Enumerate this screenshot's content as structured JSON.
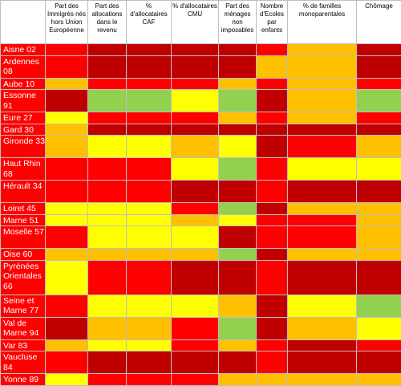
{
  "colors": {
    "dr": "#c00000",
    "r": "#ff0000",
    "o": "#ffc000",
    "y": "#ffff00",
    "g": "#92d050"
  },
  "headers": [
    "",
    "Part des Immigrés nés hors Union Européenne",
    "Part des allocations dans le revenu",
    "% d'allocataires CAF",
    "% d'allocataires CMU",
    "Part des ménages non imposables",
    "Nombre d'Ecoles par enfants",
    "% de familles monoparentales",
    "Chômage"
  ],
  "rows": [
    {
      "name": "Aisne 02",
      "cells": [
        "r",
        "dr",
        "dr",
        "dr",
        "dr",
        "r",
        "o",
        "dr"
      ]
    },
    {
      "name": "Ardennes 08",
      "cells": [
        "r",
        "dr",
        "dr",
        "dr",
        "dr",
        "o",
        "o",
        "dr"
      ]
    },
    {
      "name": "Aube 10",
      "cells": [
        "o",
        "r",
        "r",
        "r",
        "o",
        "r",
        "o",
        "r"
      ]
    },
    {
      "name": "Essonne 91",
      "cells": [
        "dr",
        "g",
        "g",
        "y",
        "g",
        "dr",
        "o",
        "g"
      ]
    },
    {
      "name": "Eure 27",
      "cells": [
        "y",
        "r",
        "r",
        "r",
        "o",
        "r",
        "o",
        "r"
      ]
    },
    {
      "name": "Gard 30",
      "cells": [
        "o",
        "dr",
        "dr",
        "dr",
        "dr",
        "dr",
        "dr",
        "dr"
      ]
    },
    {
      "name": "Gironde 33",
      "cells": [
        "o",
        "y",
        "y",
        "o",
        "y",
        "dr",
        "r",
        "o"
      ]
    },
    {
      "name": "Haut Rhin 68",
      "cells": [
        "r",
        "r",
        "r",
        "y",
        "g",
        "r",
        "y",
        "y"
      ]
    },
    {
      "name": "Hérault 34",
      "cells": [
        "r",
        "r",
        "r",
        "dr",
        "dr",
        "r",
        "dr",
        "dr"
      ]
    },
    {
      "name": "Loiret 45",
      "cells": [
        "y",
        "y",
        "y",
        "r",
        "g",
        "dr",
        "o",
        "o"
      ]
    },
    {
      "name": "Marne 51",
      "cells": [
        "y",
        "y",
        "y",
        "o",
        "y",
        "r",
        "r",
        "o"
      ]
    },
    {
      "name": "Moselle 57",
      "cells": [
        "r",
        "y",
        "y",
        "y",
        "dr",
        "r",
        "r",
        "o"
      ]
    },
    {
      "name": "Oise 60",
      "cells": [
        "o",
        "o",
        "o",
        "o",
        "g",
        "dr",
        "o",
        "o"
      ]
    },
    {
      "name": "Pyrénées Orientales 66",
      "cells": [
        "y",
        "r",
        "r",
        "dr",
        "dr",
        "r",
        "dr",
        "dr"
      ]
    },
    {
      "name": "Seine et Marne 77",
      "cells": [
        "r",
        "y",
        "y",
        "y",
        "o",
        "dr",
        "y",
        "g"
      ]
    },
    {
      "name": "Val de Marne 94",
      "cells": [
        "dr",
        "o",
        "o",
        "r",
        "g",
        "dr",
        "o",
        "y"
      ]
    },
    {
      "name": "Var 83",
      "cells": [
        "o",
        "y",
        "y",
        "r",
        "o",
        "r",
        "dr",
        "r"
      ]
    },
    {
      "name": "Vaucluse 84",
      "cells": [
        "r",
        "dr",
        "dr",
        "dr",
        "dr",
        "r",
        "dr",
        "dr"
      ]
    },
    {
      "name": "Yonne 89",
      "cells": [
        "y",
        "r",
        "r",
        "r",
        "o",
        "o",
        "o",
        "o"
      ]
    }
  ]
}
